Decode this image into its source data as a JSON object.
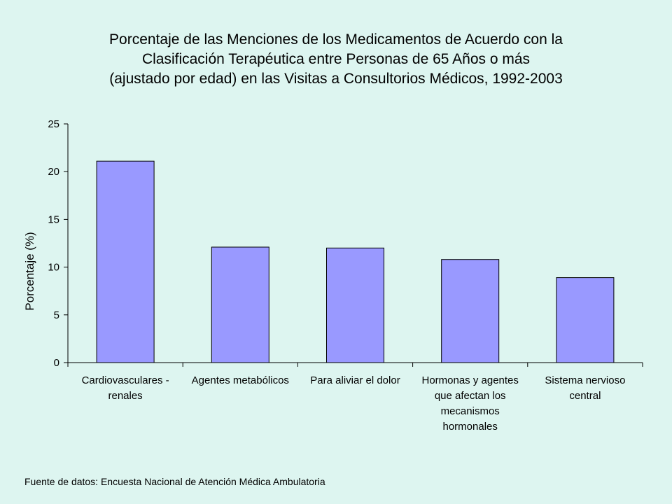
{
  "chart_data": {
    "type": "bar",
    "title": [
      "Porcentaje de las Menciones de los Medicamentos de Acuerdo con la",
      "Clasificación Terapéutica entre Personas de 65 Años o más",
      "(ajustado por edad) en las Visitas a Consultorios Médicos, 1992-2003"
    ],
    "ylabel": "Porcentaje (%)",
    "xlabel": "",
    "ylim": [
      0,
      25
    ],
    "yticks": [
      0,
      5,
      10,
      15,
      20,
      25
    ],
    "categories": [
      [
        "Cardiovasculares -",
        "renales"
      ],
      [
        "Agentes metabólicos"
      ],
      [
        "Para aliviar el dolor"
      ],
      [
        "Hormonas y agentes",
        "que afectan los",
        "mecanismos",
        "hormonales"
      ],
      [
        "Sistema nervioso",
        "central"
      ]
    ],
    "values": [
      21.1,
      12.1,
      12.0,
      10.8,
      8.9
    ],
    "bar_color": "#9999FF",
    "grid": false,
    "legend": "none"
  },
  "source_note": "Fuente de datos: Encuesta Nacional de Atención Médica Ambulatoria"
}
